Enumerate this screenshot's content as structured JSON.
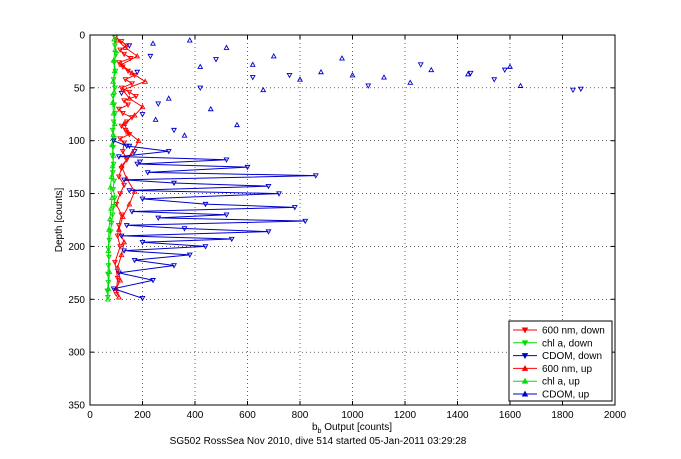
{
  "chart_data": {
    "type": "scatter",
    "title": "",
    "footer": "SG502 RossSea Nov 2010, dive 514 started 05-Jan-2011 03:29:28",
    "xlabel_main": "b",
    "xlabel_sub": "b",
    "xlabel_rest": " Output [counts]",
    "ylabel": "Depth [counts]",
    "xlim": [
      0,
      2000
    ],
    "ylim": [
      0,
      350
    ],
    "y_reversed": true,
    "grid": true,
    "legend_placement": "bottom-right",
    "xticks": [
      0,
      200,
      400,
      600,
      800,
      1000,
      1200,
      1400,
      1600,
      1800,
      2000
    ],
    "yticks": [
      0,
      50,
      100,
      150,
      200,
      250,
      300,
      350
    ],
    "series": [
      {
        "name": "600 nm, down",
        "color": "#ff0000",
        "marker": "triangle-down",
        "connected": true,
        "x": [
          95,
          120,
          140,
          115,
          130,
          155,
          110,
          125,
          145,
          170,
          135,
          160,
          120,
          150,
          175,
          130,
          145,
          110,
          125,
          160,
          140,
          120,
          135,
          150,
          115,
          130,
          125,
          140,
          120,
          110,
          130,
          115,
          100,
          120,
          110,
          105,
          115,
          95,
          105,
          100
        ],
        "y": [
          2,
          6,
          10,
          14,
          18,
          22,
          26,
          30,
          34,
          38,
          42,
          46,
          50,
          54,
          58,
          62,
          66,
          70,
          74,
          78,
          82,
          86,
          90,
          94,
          98,
          102,
          110,
          118,
          126,
          134,
          142,
          150,
          160,
          170,
          180,
          190,
          200,
          215,
          230,
          245
        ]
      },
      {
        "name": "chl a, down",
        "color": "#00dd00",
        "marker": "triangle-down",
        "connected": true,
        "x": [
          98,
          95,
          100,
          92,
          97,
          90,
          95,
          88,
          92,
          96,
          90,
          86,
          92,
          88,
          85,
          90,
          87,
          92,
          88,
          95,
          90,
          86,
          82,
          78,
          74,
          70,
          72,
          70,
          68,
          70,
          66,
          68
        ],
        "y": [
          2,
          10,
          18,
          26,
          34,
          42,
          50,
          58,
          66,
          74,
          82,
          90,
          98,
          106,
          114,
          122,
          130,
          138,
          146,
          154,
          162,
          170,
          178,
          186,
          194,
          202,
          210,
          218,
          226,
          234,
          242,
          248
        ]
      },
      {
        "name": "CDOM, down",
        "color": "#0000cc",
        "marker": "triangle-down",
        "connected": false,
        "x": [
          150,
          230,
          180,
          120,
          260,
          200,
          320,
          170,
          480,
          620,
          150,
          190,
          420,
          1580,
          1060,
          760,
          1450,
          1840,
          1260,
          1540,
          1870
        ],
        "y": [
          10,
          20,
          35,
          55,
          65,
          75,
          90,
          110,
          23,
          40,
          105,
          120,
          50,
          33,
          48,
          38,
          36,
          52,
          28,
          42,
          51
        ]
      },
      {
        "name": "600 nm, up",
        "color": "#ff0000",
        "marker": "triangle-up",
        "connected": true,
        "x": [
          105,
          135,
          180,
          120,
          160,
          210,
          125,
          150,
          200,
          170,
          130,
          145,
          185,
          160,
          120,
          140,
          170,
          150,
          125,
          110,
          130,
          120,
          105,
          115,
          100,
          110
        ],
        "y": [
          5,
          12,
          20,
          28,
          36,
          44,
          52,
          60,
          68,
          76,
          84,
          92,
          100,
          112,
          124,
          136,
          148,
          160,
          172,
          184,
          196,
          208,
          220,
          232,
          240,
          248
        ]
      },
      {
        "name": "chl a, up",
        "color": "#00dd00",
        "marker": "triangle-up",
        "connected": true,
        "x": [
          92,
          96,
          90,
          94,
          88,
          92,
          86,
          90,
          94,
          88,
          84,
          90,
          86,
          82,
          78,
          84,
          80,
          76,
          72,
          70,
          74,
          70,
          68
        ],
        "y": [
          4,
          14,
          24,
          34,
          44,
          54,
          64,
          74,
          84,
          94,
          104,
          114,
          124,
          134,
          144,
          154,
          164,
          174,
          184,
          204,
          224,
          240,
          250
        ]
      },
      {
        "name": "CDOM, up",
        "color": "#0000cc",
        "marker": "triangle-up",
        "connected": false,
        "x": [
          240,
          380,
          420,
          520,
          620,
          700,
          800,
          1000,
          1120,
          1300,
          1440,
          1600,
          1640,
          880,
          960,
          300,
          250,
          360,
          560,
          660,
          1220,
          460
        ],
        "y": [
          8,
          5,
          30,
          12,
          28,
          20,
          42,
          38,
          40,
          33,
          37,
          30,
          48,
          35,
          22,
          60,
          80,
          95,
          85,
          52,
          45,
          70
        ]
      },
      {
        "name": "CDOM, down",
        "color": "#0000cc",
        "marker": "triangle-down",
        "connected": true,
        "x": [
          90,
          140,
          300,
          110,
          520,
          180,
          600,
          220,
          860,
          130,
          320,
          680,
          150,
          720,
          200,
          440,
          780,
          160,
          520,
          260,
          820,
          140,
          360,
          680,
          120,
          540,
          200,
          440,
          130,
          380,
          170,
          320,
          110,
          240,
          90,
          200
        ],
        "y": [
          100,
          105,
          110,
          115,
          118,
          122,
          125,
          130,
          133,
          137,
          140,
          143,
          147,
          150,
          155,
          160,
          163,
          167,
          170,
          173,
          176,
          180,
          183,
          186,
          190,
          193,
          196,
          200,
          204,
          208,
          213,
          218,
          225,
          232,
          240,
          249
        ]
      }
    ]
  },
  "legend": {
    "items": [
      {
        "label": "600 nm, down",
        "color": "#ff0000",
        "marker": "triangle-down"
      },
      {
        "label": "chl a, down",
        "color": "#00dd00",
        "marker": "triangle-down"
      },
      {
        "label": "CDOM, down",
        "color": "#0000cc",
        "marker": "triangle-down"
      },
      {
        "label": "600 nm, up",
        "color": "#ff0000",
        "marker": "triangle-up"
      },
      {
        "label": "chl a, up",
        "color": "#00dd00",
        "marker": "triangle-up"
      },
      {
        "label": "CDOM, up",
        "color": "#0000cc",
        "marker": "triangle-up"
      }
    ]
  }
}
